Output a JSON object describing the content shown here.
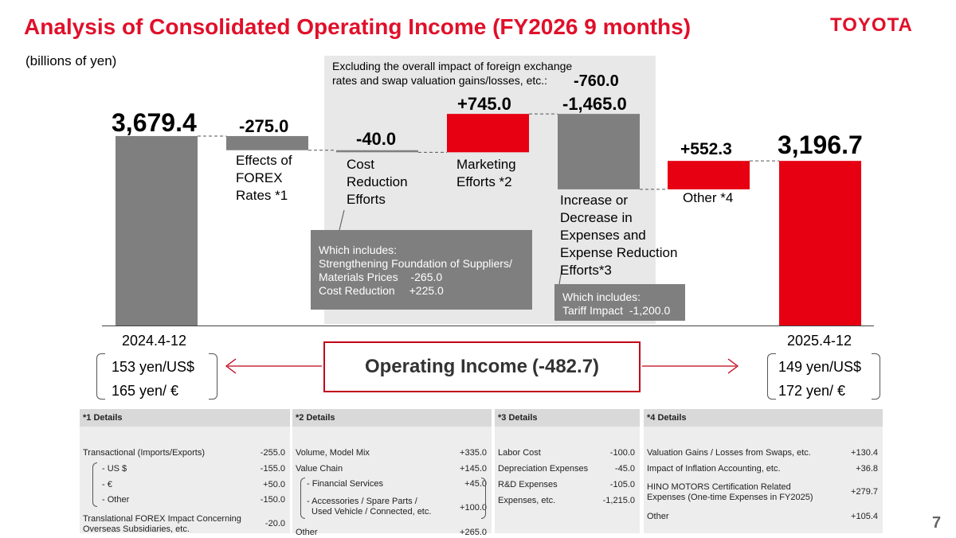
{
  "title": "Analysis of Consolidated Operating Income (FY2026 9 months)",
  "logo": "TOYOTA",
  "unit": "(billions of yen)",
  "page_number": "7",
  "colors": {
    "gray": "#7f7f7f",
    "red": "#e60012",
    "title_red": "#e0102a"
  },
  "excluding": {
    "text": "Excluding the overall impact of foreign exchange rates and swap valuation gains/losses, etc.:",
    "value": "-760.0"
  },
  "chart_data": {
    "type": "bar",
    "subtype": "waterfall",
    "categories": [
      "2024.4-12",
      "Effects of FOREX Rates *1",
      "Cost Reduction Efforts",
      "Marketing Efforts *2",
      "Increase or Decrease in Expenses and Expense Reduction Efforts*3",
      "Other *4",
      "2025.4-12"
    ],
    "values": [
      3679.4,
      -275.0,
      -40.0,
      745.0,
      -1465.0,
      552.3,
      3196.7
    ],
    "value_labels": [
      "3,679.4",
      "-275.0",
      "-40.0",
      "+745.0",
      "-1,465.0",
      "+552.3",
      "3,196.7"
    ],
    "kinds": [
      "total",
      "delta",
      "delta",
      "delta",
      "delta",
      "delta",
      "total"
    ],
    "bar_colors": [
      "#7f7f7f",
      "#7f7f7f",
      "#7f7f7f",
      "#e60012",
      "#7f7f7f",
      "#e60012",
      "#e60012"
    ],
    "ylim": [
      0,
      3850
    ],
    "title": "",
    "xlabel": "",
    "ylabel": ""
  },
  "bar_labels": {
    "b1": "Effects of|FOREX|Rates *1",
    "b2": "Cost|Reduction|Efforts",
    "b3": "Marketing|Efforts *2",
    "b4": "Increase or|Decrease in|Expenses and|Expense Reduction|Efforts*3",
    "b5": "Other *4"
  },
  "callouts": {
    "cost": {
      "line1": "Which includes:",
      "line2": "Strengthening Foundation of Suppliers/",
      "line3": "Materials Prices",
      "value3": "-265.0",
      "line4": "Cost Reduction",
      "value4": "+225.0"
    },
    "expense": {
      "line1": "Which includes:",
      "line2": "Tariff Impact",
      "value2": "-1,200.0"
    }
  },
  "periods": {
    "start": "2024.4-12",
    "end": "2025.4-12"
  },
  "rates": {
    "start_usd": "153 yen/US$",
    "start_eur": "165 yen/ €",
    "end_usd": "149 yen/US$",
    "end_eur": "172 yen/ €"
  },
  "operating_income": {
    "label": "Operating Income",
    "value": "(-482.7)"
  },
  "details": {
    "t1": {
      "header": "*1 Details",
      "rows": [
        {
          "label": "Transactional (Imports/Exports)",
          "value": "-255.0"
        },
        {
          "label": "- US $",
          "value": "-155.0"
        },
        {
          "label": "- €",
          "value": "+50.0"
        },
        {
          "label": "- Other",
          "value": "-150.0"
        },
        {
          "label": "Translational FOREX Impact Concerning",
          "label2": "Overseas Subsidiaries, etc.",
          "value": "-20.0"
        }
      ]
    },
    "t2": {
      "header": "*2 Details",
      "rows": [
        {
          "label": "Volume, Model Mix",
          "value": "+335.0"
        },
        {
          "label": "Value Chain",
          "value": "+145.0"
        },
        {
          "label": "- Financial Services",
          "value": "+45.0"
        },
        {
          "label": "- Accessories / Spare Parts /",
          "label2": "Used Vehicle / Connected, etc.",
          "value": "+100.0"
        },
        {
          "label": "Other",
          "value": "+265.0"
        }
      ]
    },
    "t3": {
      "header": "*3 Details",
      "rows": [
        {
          "label": "Labor Cost",
          "value": "-100.0"
        },
        {
          "label": "Depreciation Expenses",
          "value": "-45.0"
        },
        {
          "label": "R&D Expenses",
          "value": "-105.0"
        },
        {
          "label": "Expenses, etc.",
          "value": "-1,215.0"
        }
      ]
    },
    "t4": {
      "header": "*4 Details",
      "rows": [
        {
          "label": "Valuation Gains / Losses from Swaps, etc.",
          "value": "+130.4"
        },
        {
          "label": "Impact of Inflation Accounting, etc.",
          "value": "+36.8"
        },
        {
          "label": "HINO MOTORS Certification Related",
          "label2": "Expenses  (One-time Expenses in FY2025)",
          "value": "+279.7"
        },
        {
          "label": "Other",
          "value": "+105.4"
        }
      ]
    }
  }
}
